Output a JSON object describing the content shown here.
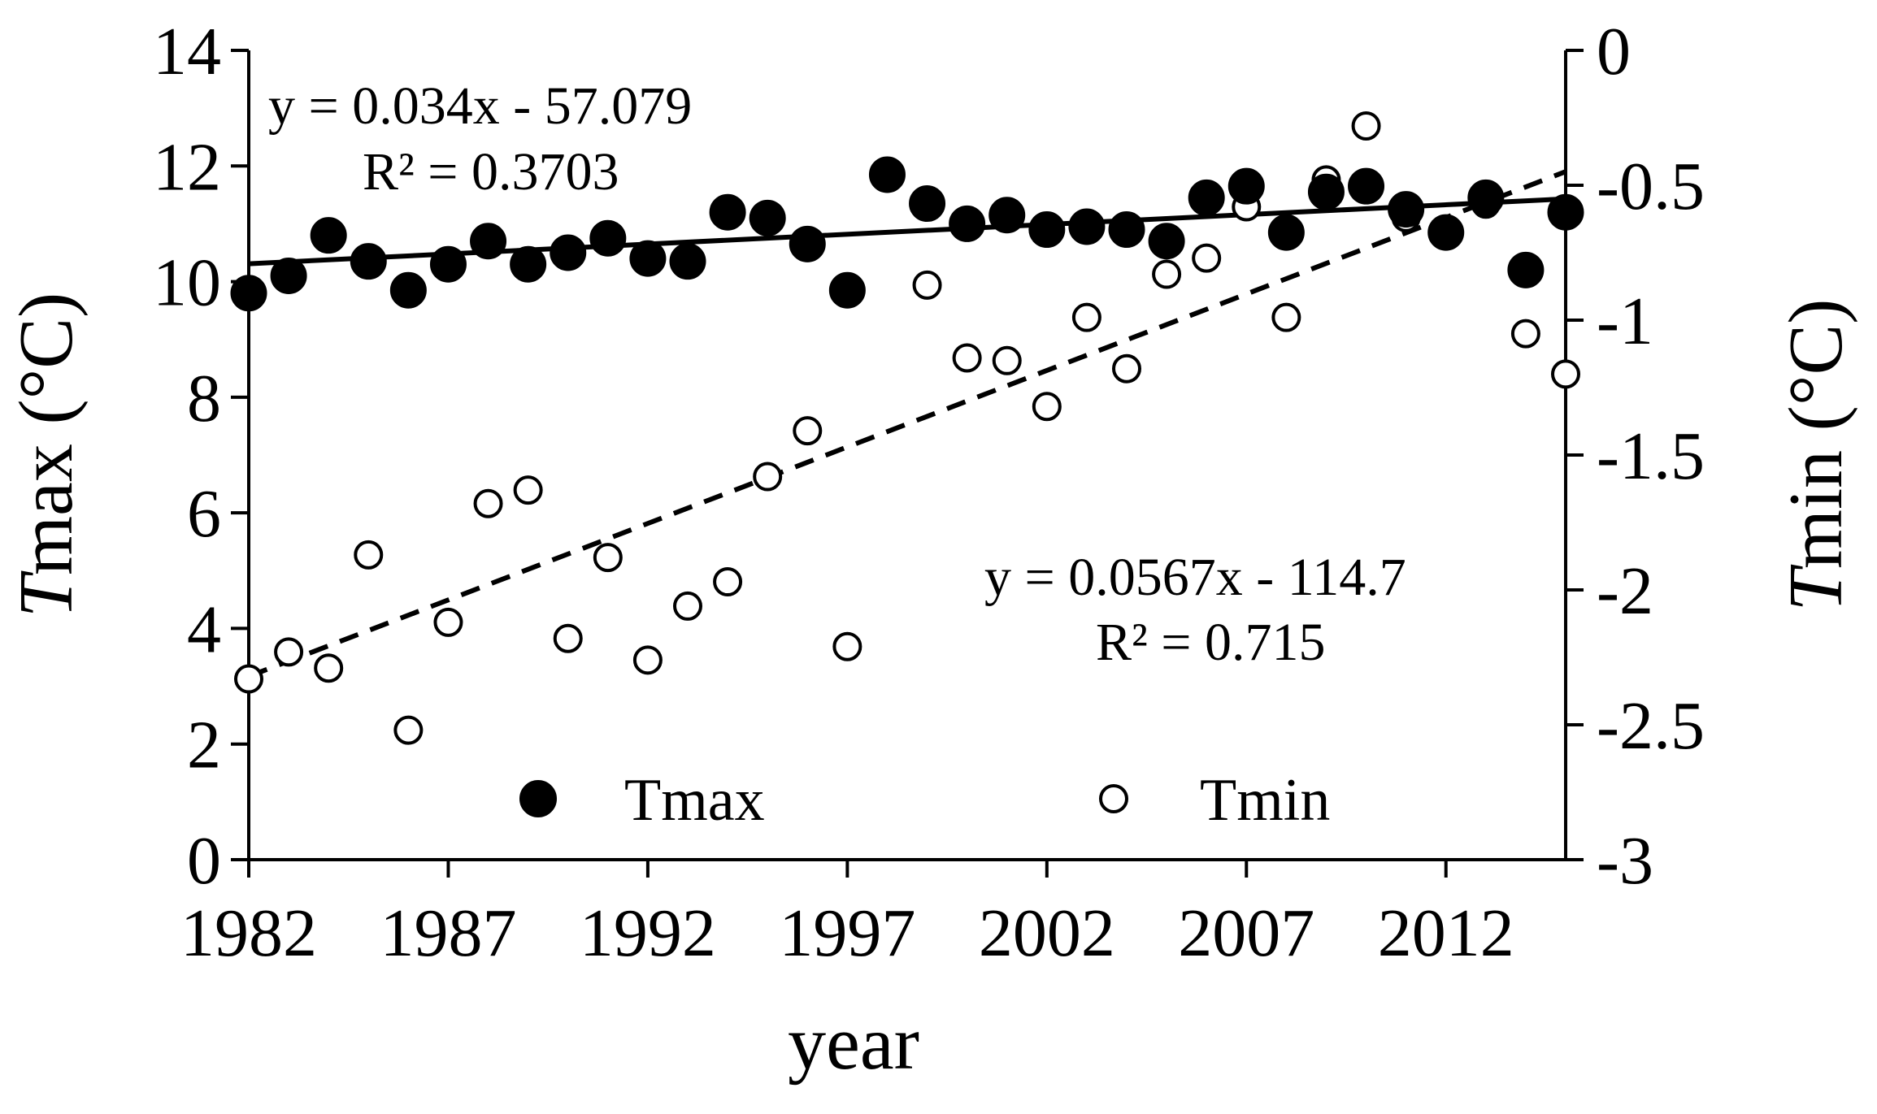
{
  "chart_data": {
    "type": "scatter",
    "xlabel": "year",
    "ylabel_left": {
      "italic": "T",
      "rest": "max (°C)"
    },
    "ylabel_right": {
      "italic": "T",
      "rest": "min (°C)"
    },
    "xlim": [
      1982,
      2015
    ],
    "ylim_left": [
      0,
      14
    ],
    "ylim_right": [
      -3,
      0
    ],
    "x_ticks": [
      1982,
      1987,
      1992,
      1997,
      2002,
      2007,
      2012
    ],
    "y_ticks_left": [
      "0",
      "2",
      "4",
      "6",
      "8",
      "10",
      "12",
      "14"
    ],
    "y_ticks_right": [
      "-3",
      "-2.5",
      "-2",
      "-1.5",
      "-1",
      "-0.5",
      "0"
    ],
    "grid": false,
    "legend": {
      "placement": "bottom-inside",
      "entries": [
        "Tmax",
        "Tmin"
      ]
    },
    "series": [
      {
        "name": "Tmax",
        "axis": "left",
        "marker": "filled-circle",
        "x": [
          1982,
          1983,
          1984,
          1985,
          1986,
          1987,
          1988,
          1989,
          1990,
          1991,
          1992,
          1993,
          1994,
          1995,
          1996,
          1997,
          1998,
          1999,
          2000,
          2001,
          2002,
          2003,
          2004,
          2005,
          2006,
          2007,
          2008,
          2009,
          2010,
          2011,
          2012,
          2013,
          2014,
          2015
        ],
        "y": [
          9.8,
          10.1,
          10.8,
          10.35,
          9.85,
          10.3,
          10.7,
          10.3,
          10.5,
          10.75,
          10.4,
          10.35,
          11.2,
          11.1,
          10.65,
          9.85,
          11.85,
          11.35,
          11.0,
          11.15,
          10.9,
          10.95,
          10.9,
          10.7,
          11.45,
          11.65,
          10.85,
          11.55,
          11.65,
          11.25,
          10.85,
          11.45,
          10.2,
          11.2
        ]
      },
      {
        "name": "Tmin",
        "axis": "right",
        "marker": "open-circle",
        "x": [
          1982,
          1983,
          1984,
          1985,
          1986,
          1987,
          1988,
          1989,
          1990,
          1991,
          1992,
          1993,
          1994,
          1995,
          1996,
          1997,
          1998,
          1999,
          2000,
          2001,
          2002,
          2003,
          2004,
          2005,
          2006,
          2007,
          2008,
          2009,
          2010,
          2011,
          2012,
          2013,
          2014,
          2015
        ],
        "y": [
          -2.33,
          -2.23,
          -2.29,
          -1.87,
          -2.52,
          -2.12,
          -1.68,
          -1.63,
          -2.18,
          -1.88,
          -2.26,
          -2.06,
          -1.97,
          -1.58,
          -1.41,
          -2.21,
          -0.46,
          -0.87,
          -1.14,
          -1.15,
          -1.32,
          -0.99,
          -1.18,
          -0.83,
          -0.77,
          -0.58,
          -0.99,
          -0.48,
          -0.28,
          -0.62,
          -0.67,
          -0.57,
          -1.05,
          -1.2
        ]
      }
    ],
    "trendlines": [
      {
        "series": "Tmax",
        "style": "solid",
        "slope": 0.034,
        "intercept": -57.079,
        "equation": "y = 0.034x - 57.079",
        "r2": "R² = 0.3703"
      },
      {
        "series": "Tmin",
        "style": "dashed",
        "slope": 0.0567,
        "intercept": -114.7,
        "equation": "y = 0.0567x - 114.7",
        "r2": "R² = 0.715"
      }
    ]
  }
}
